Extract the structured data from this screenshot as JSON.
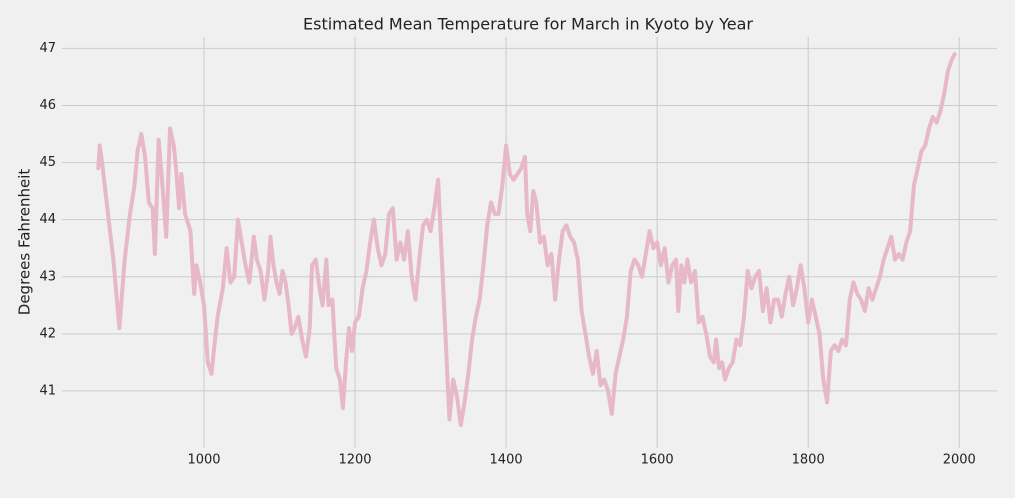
{
  "chart_data": {
    "type": "line",
    "title": "Estimated Mean Temperature for March in Kyoto by Year",
    "ylabel": "Degrees Fahrenheit",
    "x": [
      860,
      862,
      866,
      872,
      880,
      888,
      895,
      902,
      908,
      912,
      917,
      922,
      927,
      932,
      935,
      940,
      945,
      950,
      955,
      960,
      963,
      967,
      970,
      975,
      982,
      987,
      990,
      995,
      1000,
      1005,
      1010,
      1013,
      1018,
      1025,
      1030,
      1035,
      1040,
      1045,
      1050,
      1055,
      1060,
      1066,
      1070,
      1075,
      1080,
      1085,
      1088,
      1092,
      1096,
      1100,
      1104,
      1108,
      1112,
      1116,
      1120,
      1125,
      1130,
      1135,
      1140,
      1143,
      1148,
      1153,
      1157,
      1162,
      1165,
      1170,
      1175,
      1180,
      1184,
      1188,
      1192,
      1196,
      1200,
      1205,
      1210,
      1215,
      1220,
      1225,
      1230,
      1235,
      1240,
      1245,
      1250,
      1255,
      1260,
      1265,
      1270,
      1275,
      1280,
      1285,
      1290,
      1295,
      1300,
      1305,
      1310,
      1315,
      1320,
      1325,
      1330,
      1335,
      1340,
      1345,
      1350,
      1355,
      1360,
      1365,
      1370,
      1375,
      1380,
      1385,
      1390,
      1395,
      1400,
      1405,
      1410,
      1415,
      1420,
      1425,
      1428,
      1432,
      1436,
      1440,
      1445,
      1450,
      1455,
      1460,
      1465,
      1470,
      1475,
      1480,
      1485,
      1490,
      1495,
      1500,
      1505,
      1510,
      1515,
      1520,
      1525,
      1530,
      1535,
      1540,
      1545,
      1550,
      1555,
      1560,
      1565,
      1570,
      1575,
      1580,
      1585,
      1590,
      1595,
      1600,
      1605,
      1610,
      1615,
      1620,
      1625,
      1628,
      1632,
      1636,
      1640,
      1645,
      1650,
      1655,
      1660,
      1665,
      1670,
      1675,
      1678,
      1682,
      1686,
      1690,
      1695,
      1700,
      1705,
      1710,
      1715,
      1720,
      1725,
      1730,
      1735,
      1740,
      1745,
      1750,
      1755,
      1760,
      1765,
      1770,
      1775,
      1780,
      1785,
      1790,
      1795,
      1800,
      1805,
      1810,
      1815,
      1820,
      1825,
      1830,
      1835,
      1840,
      1845,
      1850,
      1855,
      1860,
      1865,
      1870,
      1875,
      1880,
      1885,
      1890,
      1895,
      1900,
      1905,
      1910,
      1915,
      1920,
      1925,
      1930,
      1935,
      1940,
      1945,
      1950,
      1955,
      1960,
      1965,
      1970,
      1975,
      1980,
      1985,
      1990,
      1994
    ],
    "series": [
      {
        "color": "#e6b8ca",
        "values": [
          44.9,
          45.3,
          44.9,
          44.2,
          43.3,
          42.1,
          43.3,
          44.1,
          44.6,
          45.2,
          45.5,
          45.1,
          44.3,
          44.2,
          43.4,
          45.4,
          44.6,
          43.7,
          45.6,
          45.3,
          44.9,
          44.2,
          44.8,
          44.1,
          43.8,
          42.7,
          43.2,
          42.9,
          42.5,
          41.5,
          41.3,
          41.7,
          42.3,
          42.8,
          43.5,
          42.9,
          43.0,
          44.0,
          43.6,
          43.2,
          42.9,
          43.7,
          43.3,
          43.1,
          42.6,
          43.1,
          43.7,
          43.2,
          42.9,
          42.7,
          43.1,
          42.9,
          42.5,
          42.0,
          42.1,
          42.3,
          41.9,
          41.6,
          42.1,
          43.2,
          43.3,
          42.8,
          42.5,
          43.3,
          42.5,
          42.6,
          41.4,
          41.2,
          40.7,
          41.5,
          42.1,
          41.7,
          42.2,
          42.3,
          42.8,
          43.1,
          43.6,
          44.0,
          43.5,
          43.2,
          43.4,
          44.1,
          44.2,
          43.3,
          43.6,
          43.3,
          43.8,
          43.0,
          42.6,
          43.3,
          43.9,
          44.0,
          43.8,
          44.2,
          44.7,
          43.3,
          41.9,
          40.5,
          41.2,
          40.9,
          40.4,
          40.8,
          41.3,
          41.9,
          42.3,
          42.6,
          43.2,
          43.9,
          44.3,
          44.1,
          44.1,
          44.6,
          45.3,
          44.8,
          44.7,
          44.8,
          44.9,
          45.1,
          44.1,
          43.8,
          44.5,
          44.3,
          43.6,
          43.7,
          43.2,
          43.4,
          42.6,
          43.3,
          43.8,
          43.9,
          43.7,
          43.6,
          43.3,
          42.4,
          42.0,
          41.6,
          41.3,
          41.7,
          41.1,
          41.2,
          41.0,
          40.6,
          41.3,
          41.6,
          41.9,
          42.3,
          43.1,
          43.3,
          43.2,
          43.0,
          43.4,
          43.8,
          43.5,
          43.6,
          43.2,
          43.5,
          42.9,
          43.2,
          43.3,
          42.4,
          43.2,
          42.9,
          43.3,
          42.9,
          43.1,
          42.2,
          42.3,
          42.0,
          41.6,
          41.5,
          41.9,
          41.4,
          41.5,
          41.2,
          41.4,
          41.5,
          41.9,
          41.8,
          42.3,
          43.1,
          42.8,
          43.0,
          43.1,
          42.4,
          42.8,
          42.2,
          42.6,
          42.6,
          42.3,
          42.7,
          43.0,
          42.5,
          42.8,
          43.2,
          42.8,
          42.2,
          42.6,
          42.3,
          42.0,
          41.2,
          40.8,
          41.7,
          41.8,
          41.7,
          41.9,
          41.8,
          42.6,
          42.9,
          42.7,
          42.6,
          42.4,
          42.8,
          42.6,
          42.8,
          43.0,
          43.3,
          43.5,
          43.7,
          43.3,
          43.4,
          43.3,
          43.6,
          43.8,
          44.6,
          44.9,
          45.2,
          45.3,
          45.6,
          45.8,
          45.7,
          45.9,
          46.2,
          46.6,
          46.8,
          46.9
        ]
      }
    ],
    "xlim": [
      812,
      2050
    ],
    "ylim": [
      40.0,
      47.2
    ],
    "xticks": [
      1000,
      1200,
      1400,
      1600,
      1800,
      2000
    ],
    "yticks": [
      41,
      42,
      43,
      44,
      45,
      46,
      47
    ],
    "grid": true
  }
}
